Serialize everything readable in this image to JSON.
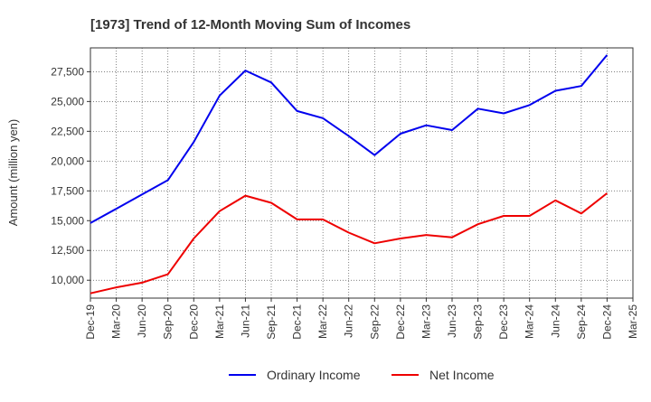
{
  "chart_data": {
    "type": "line",
    "title": "[1973]  Trend of 12-Month Moving Sum of Incomes",
    "xlabel": "",
    "ylabel": "Amount (million yen)",
    "ylim": [
      8500,
      29500
    ],
    "yticks": [
      10000,
      12500,
      15000,
      17500,
      20000,
      22500,
      25000,
      27500
    ],
    "ytick_labels": [
      "10,000",
      "12,500",
      "15,000",
      "17,500",
      "20,000",
      "22,500",
      "25,000",
      "27,500"
    ],
    "categories": [
      "Dec-19",
      "Mar-20",
      "Jun-20",
      "Sep-20",
      "Dec-20",
      "Mar-21",
      "Jun-21",
      "Sep-21",
      "Dec-21",
      "Mar-22",
      "Jun-22",
      "Sep-22",
      "Dec-22",
      "Mar-23",
      "Jun-23",
      "Sep-23",
      "Dec-23",
      "Mar-24",
      "Jun-24",
      "Sep-24",
      "Dec-24",
      "Mar-25"
    ],
    "series": [
      {
        "name": "Ordinary Income",
        "color": "#0000ee",
        "values": [
          14800,
          16000,
          17200,
          18400,
          21600,
          25500,
          27600,
          26600,
          24200,
          23600,
          22100,
          20500,
          22300,
          23000,
          22600,
          24400,
          24000,
          24700,
          25900,
          26300,
          28900,
          null
        ]
      },
      {
        "name": "Net Income",
        "color": "#ee0000",
        "values": [
          8900,
          9400,
          9800,
          10500,
          13500,
          15800,
          17100,
          16500,
          15100,
          15100,
          14000,
          13100,
          13500,
          13800,
          13600,
          14700,
          15400,
          15400,
          16700,
          15600,
          17300,
          null
        ]
      }
    ],
    "legend_position": "bottom-center",
    "grid": true
  }
}
